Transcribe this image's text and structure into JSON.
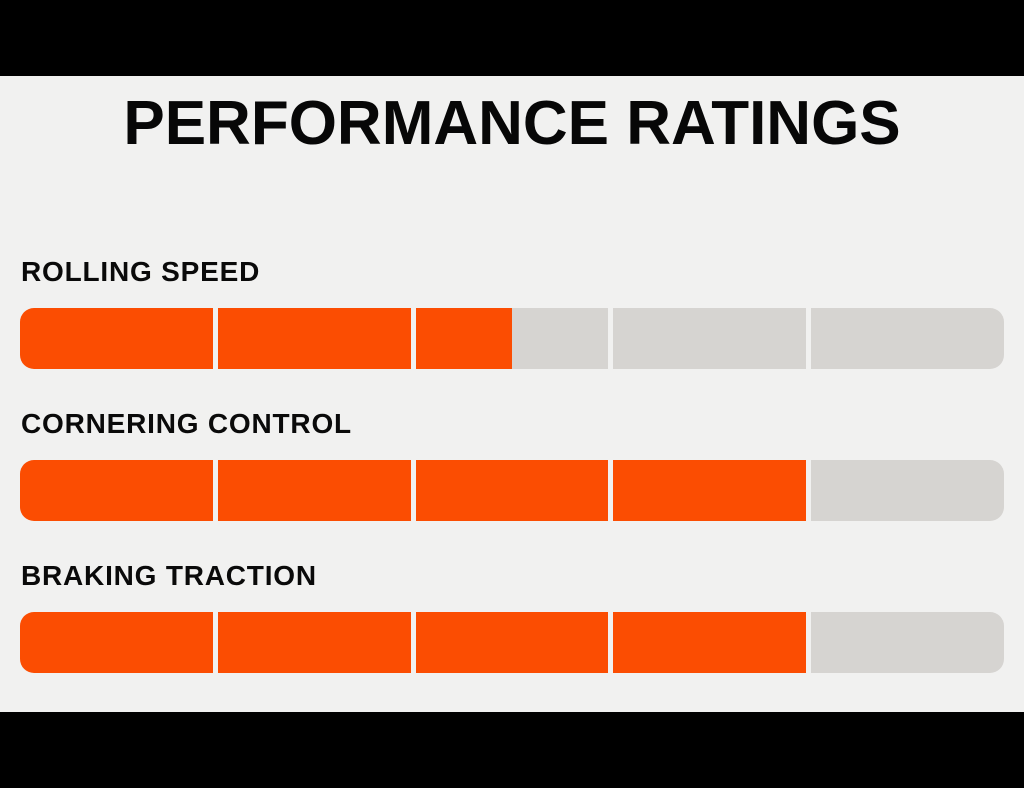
{
  "page": {
    "title": "PERFORMANCE RATINGS"
  },
  "colors": {
    "letterbox": "#000000",
    "background": "#F1F1F0",
    "fill": "#FB4D02",
    "track": "#D6D4D1",
    "text": "#070707"
  },
  "chart_data": {
    "type": "bar",
    "title": "PERFORMANCE RATINGS",
    "orientation": "horizontal",
    "categories": [
      "ROLLING SPEED",
      "CORNERING CONTROL",
      "BRAKING TRACTION"
    ],
    "values": [
      2.5,
      4,
      4
    ],
    "value_max": 5,
    "segments_per_bar": 5,
    "legend": false,
    "grid": false
  }
}
